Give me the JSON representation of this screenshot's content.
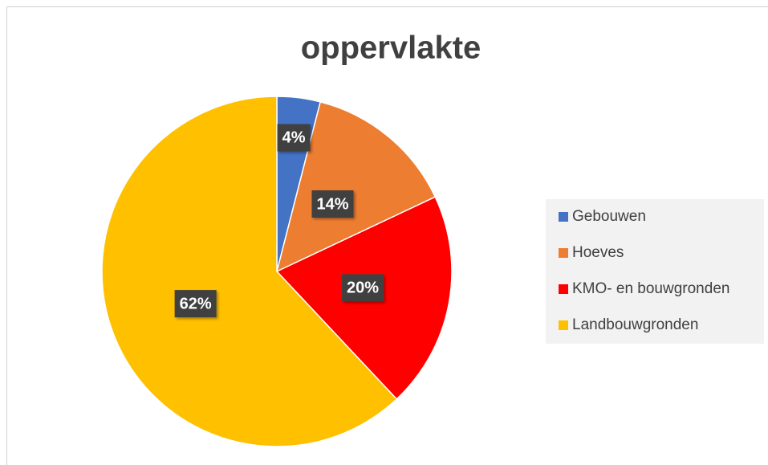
{
  "chart_data": {
    "type": "pie",
    "title": "oppervlakte",
    "categories": [
      "Gebouwen",
      "Hoeves",
      "KMO- en bouwgronden",
      "Landbouwgronden"
    ],
    "values": [
      4,
      14,
      20,
      62
    ],
    "value_labels": [
      "4%",
      "14%",
      "20%",
      "62%"
    ],
    "colors": [
      "#4472c4",
      "#ed7d31",
      "#ff0000",
      "#ffc000"
    ],
    "legend": "right"
  }
}
